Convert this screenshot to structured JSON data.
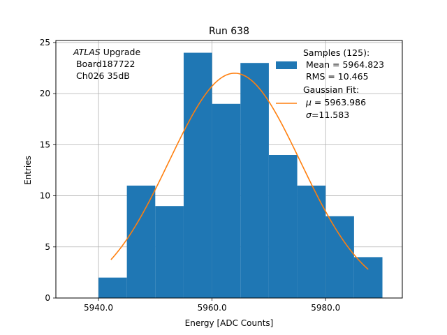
{
  "chart_data": {
    "type": "bar",
    "title": "Run 638",
    "xlabel": "Energy [ADC Counts]",
    "ylabel": "Entries",
    "xlim": [
      5932.5,
      5993.5
    ],
    "ylim": [
      0,
      25.2
    ],
    "grid": true,
    "legend_placement": "top-right",
    "colors": {
      "histogram": "#1f77b4",
      "fit": "#ff7f0e"
    },
    "xticks": [
      5940.0,
      5960.0,
      5980.0
    ],
    "xtick_labels": [
      "5940.0",
      "5960.0",
      "5980.0"
    ],
    "yticks": [
      0,
      5,
      10,
      15,
      20,
      25
    ],
    "ytick_labels": [
      "0",
      "5",
      "10",
      "15",
      "20",
      "25"
    ],
    "histogram": {
      "name": "Samples (125):",
      "bin_edges": [
        5940,
        5945,
        5950,
        5955,
        5960,
        5965,
        5970,
        5975,
        5980,
        5985,
        5990
      ],
      "counts": [
        2,
        11,
        9,
        24,
        19,
        23,
        14,
        11,
        8,
        4
      ]
    },
    "fit": {
      "name": "Gaussian Fit:",
      "x_range": [
        5942.2,
        5987.5
      ],
      "mu": 5963.986,
      "sigma": 11.583,
      "amplitude": 22.0
    },
    "legend": {
      "samples_title": "Samples (125):",
      "samples_mean": " Mean = 5964.823",
      "samples_rms": " RMS = 10.465",
      "fit_title": "Gaussian Fit:",
      "fit_mu_symbol": "μ",
      "fit_mu_value": " = 5963.986",
      "fit_sigma_symbol": "σ",
      "fit_sigma_value": "=11.583"
    },
    "annotation": {
      "experiment": "ATLAS",
      "experiment_suffix": " Upgrade",
      "board": " Board187722",
      "channel": " Ch026 35dB"
    }
  }
}
